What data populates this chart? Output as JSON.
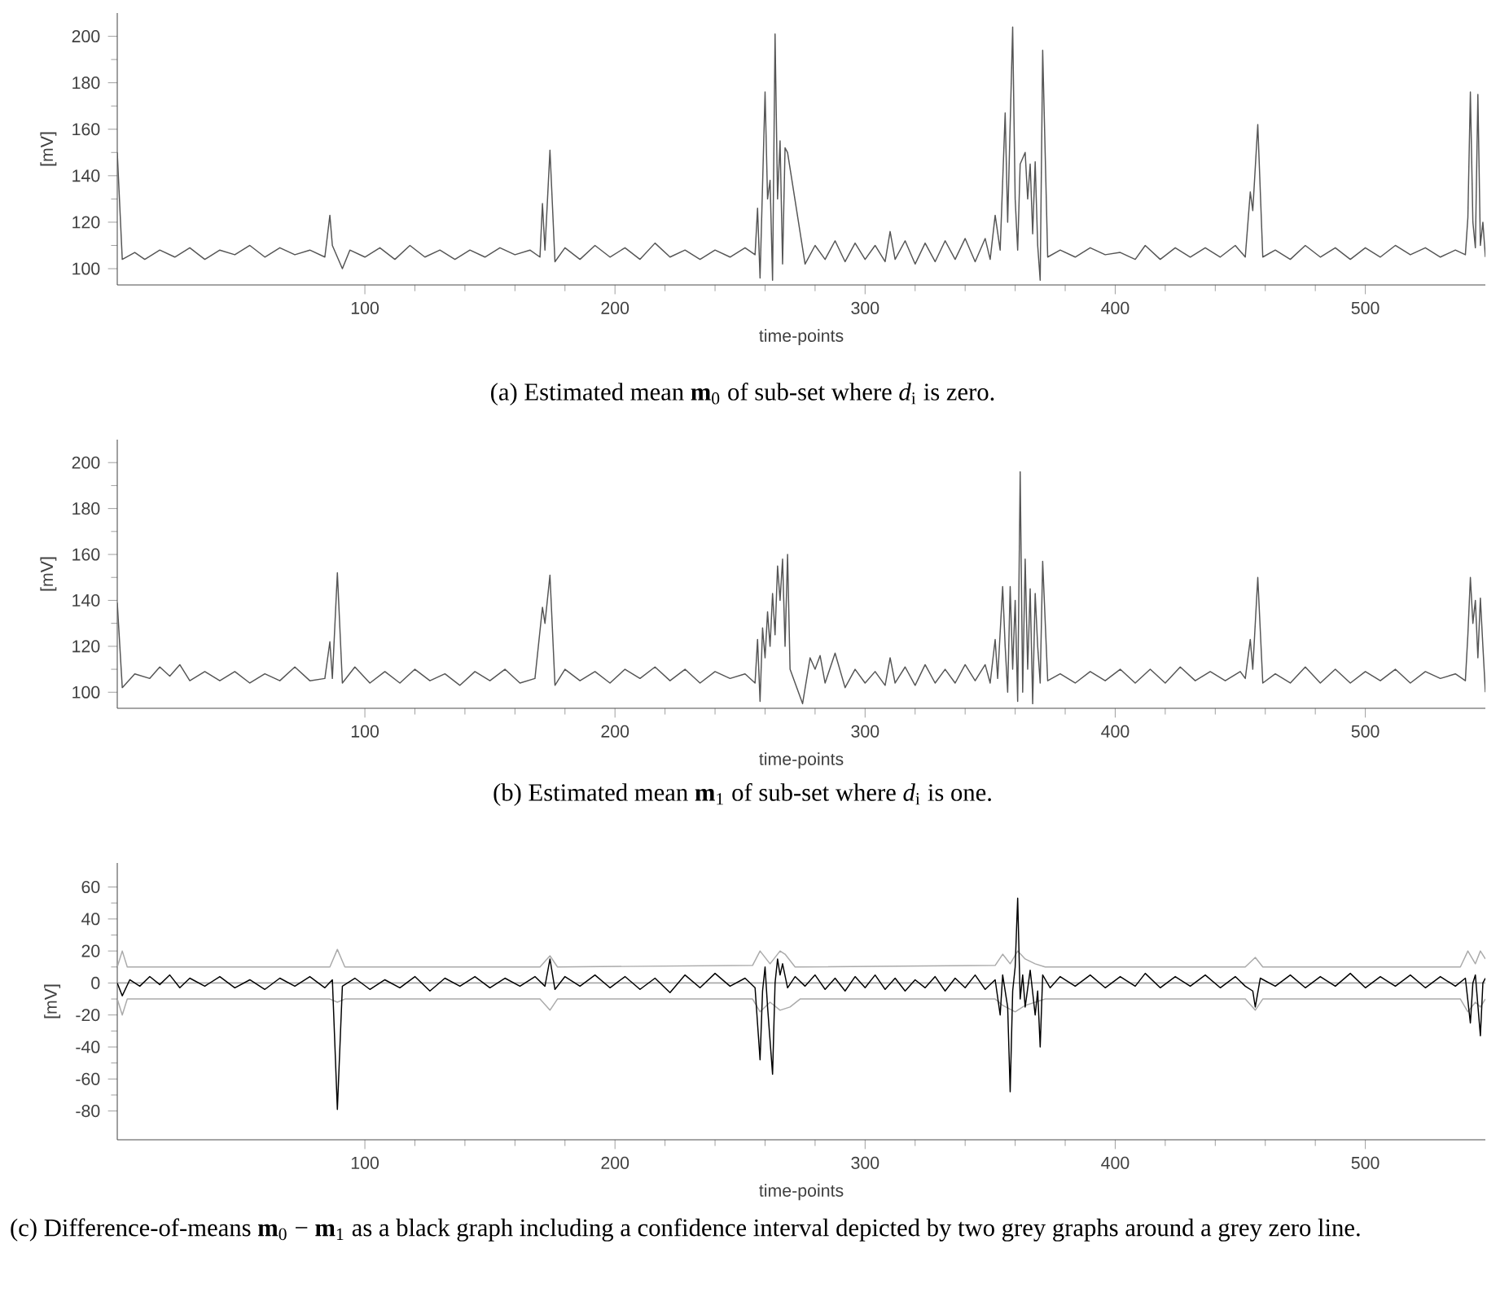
{
  "chart_data": [
    {
      "type": "line",
      "xlabel": "time-points",
      "ylabel": "[mV]",
      "xlim": [
        1,
        548
      ],
      "ylim": [
        93,
        210
      ],
      "xticks": [
        100,
        200,
        300,
        400,
        500
      ],
      "yticks": [
        100,
        120,
        140,
        160,
        180,
        200
      ],
      "annotations": [
        "(a) Estimated mean **m**$_{0}$ of sub-set where *d*$_{i}$ is zero."
      ],
      "series": [
        {
          "color": "#555555",
          "x": [
            1,
            3,
            8,
            12,
            18,
            24,
            30,
            36,
            42,
            48,
            54,
            60,
            66,
            72,
            78,
            84,
            86,
            87,
            89,
            91,
            94,
            100,
            106,
            112,
            118,
            124,
            130,
            136,
            142,
            148,
            154,
            160,
            166,
            170,
            171,
            172,
            174,
            176,
            180,
            186,
            192,
            198,
            204,
            210,
            216,
            222,
            228,
            234,
            240,
            246,
            252,
            256,
            257,
            258,
            260,
            261,
            262,
            263,
            264,
            265,
            266,
            267,
            268,
            269,
            270,
            273,
            276,
            280,
            284,
            288,
            292,
            296,
            300,
            304,
            308,
            310,
            312,
            316,
            320,
            324,
            328,
            332,
            336,
            340,
            344,
            348,
            350,
            352,
            354,
            356,
            357,
            359,
            360,
            361,
            362,
            364,
            365,
            366,
            367,
            368,
            369,
            370,
            371,
            373,
            378,
            384,
            390,
            396,
            402,
            408,
            412,
            418,
            424,
            430,
            436,
            442,
            448,
            452,
            454,
            455,
            457,
            459,
            464,
            470,
            476,
            482,
            488,
            494,
            500,
            506,
            512,
            518,
            524,
            530,
            536,
            540,
            541,
            542,
            543,
            544,
            545,
            546,
            547,
            548
          ],
          "values": [
            150,
            104,
            107,
            104,
            108,
            105,
            109,
            104,
            108,
            106,
            110,
            105,
            109,
            106,
            108,
            105,
            123,
            110,
            null,
            100,
            108,
            105,
            109,
            104,
            110,
            105,
            108,
            104,
            108,
            105,
            109,
            106,
            108,
            105,
            128,
            108,
            151,
            103,
            109,
            104,
            110,
            105,
            109,
            104,
            111,
            105,
            108,
            104,
            108,
            105,
            109,
            106,
            126,
            96,
            176,
            130,
            138,
            95,
            201,
            130,
            155,
            102,
            152,
            150,
            null,
            null,
            102,
            110,
            104,
            112,
            103,
            111,
            104,
            110,
            103,
            116,
            104,
            112,
            102,
            111,
            103,
            112,
            104,
            113,
            103,
            113,
            104,
            123,
            108,
            167,
            120,
            204,
            130,
            108,
            145,
            150,
            130,
            145,
            115,
            146,
            110,
            95,
            194,
            105,
            108,
            105,
            109,
            106,
            107,
            104,
            110,
            104,
            109,
            105,
            109,
            105,
            110,
            105,
            133,
            125,
            162,
            105,
            108,
            104,
            110,
            105,
            109,
            104,
            109,
            105,
            110,
            106,
            109,
            105,
            108,
            106,
            122,
            176,
            120,
            109,
            175,
            110,
            120,
            105
          ]
        }
      ]
    },
    {
      "type": "line",
      "xlabel": "time-points",
      "ylabel": "[mV]",
      "xlim": [
        1,
        548
      ],
      "ylim": [
        93,
        210
      ],
      "xticks": [
        100,
        200,
        300,
        400,
        500
      ],
      "yticks": [
        100,
        120,
        140,
        160,
        180,
        200
      ],
      "annotations": [
        "(b) Estimated mean **m**$_{1}$ of sub-set where *d*$_{i}$ is one."
      ],
      "series": [
        {
          "color": "#555555",
          "x": [
            1,
            3,
            8,
            14,
            18,
            22,
            26,
            30,
            36,
            42,
            48,
            54,
            60,
            66,
            72,
            78,
            84,
            86,
            87,
            89,
            91,
            96,
            102,
            108,
            114,
            120,
            126,
            132,
            138,
            144,
            150,
            156,
            162,
            168,
            171,
            172,
            174,
            176,
            180,
            186,
            192,
            198,
            204,
            210,
            216,
            222,
            228,
            234,
            240,
            246,
            252,
            256,
            257,
            258,
            259,
            260,
            261,
            262,
            263,
            264,
            265,
            266,
            267,
            268,
            269,
            270,
            272,
            275,
            278,
            280,
            282,
            284,
            288,
            292,
            296,
            300,
            304,
            308,
            310,
            312,
            316,
            320,
            324,
            328,
            332,
            336,
            340,
            344,
            348,
            350,
            352,
            353,
            355,
            356,
            357,
            358,
            359,
            360,
            361,
            362,
            363,
            364,
            365,
            366,
            367,
            368,
            369,
            370,
            371,
            373,
            378,
            384,
            390,
            396,
            402,
            408,
            414,
            420,
            426,
            432,
            438,
            444,
            450,
            452,
            454,
            455,
            457,
            459,
            464,
            470,
            476,
            482,
            488,
            494,
            500,
            506,
            512,
            518,
            524,
            530,
            536,
            540,
            541,
            542,
            543,
            544,
            545,
            546,
            547,
            548
          ],
          "values": [
            139,
            102,
            108,
            106,
            111,
            107,
            112,
            105,
            109,
            105,
            109,
            104,
            108,
            105,
            111,
            105,
            106,
            122,
            106,
            152,
            104,
            111,
            104,
            109,
            104,
            110,
            105,
            108,
            103,
            109,
            105,
            110,
            104,
            106,
            137,
            130,
            151,
            103,
            110,
            105,
            109,
            104,
            110,
            106,
            111,
            105,
            110,
            104,
            109,
            106,
            108,
            104,
            123,
            96,
            128,
            115,
            135,
            120,
            143,
            125,
            155,
            140,
            158,
            120,
            160,
            110,
            null,
            95,
            115,
            110,
            116,
            104,
            117,
            102,
            110,
            104,
            109,
            103,
            115,
            104,
            111,
            103,
            112,
            104,
            110,
            104,
            112,
            105,
            112,
            104,
            123,
            106,
            146,
            120,
            100,
            146,
            110,
            140,
            96,
            196,
            100,
            158,
            110,
            145,
            95,
            143,
            120,
            104,
            157,
            105,
            108,
            104,
            109,
            105,
            110,
            104,
            110,
            104,
            111,
            105,
            109,
            105,
            109,
            106,
            123,
            110,
            150,
            104,
            108,
            104,
            111,
            104,
            110,
            104,
            109,
            105,
            110,
            104,
            109,
            106,
            108,
            105,
            125,
            150,
            130,
            140,
            115,
            141,
            120,
            100
          ]
        }
      ]
    },
    {
      "type": "line",
      "xlabel": "time-points",
      "ylabel": "[mV]",
      "xlim": [
        1,
        548
      ],
      "ylim": [
        -98,
        75
      ],
      "xticks": [
        100,
        200,
        300,
        400,
        500
      ],
      "yticks": [
        -80,
        -60,
        -40,
        -20,
        0,
        20,
        40,
        60
      ],
      "annotations": [
        "(c) Difference-of-means **m**$_{0}$ − **m**$_{1}$ as a black graph including a confidence interval depicted by two grey graphs around a grey zero line."
      ],
      "ref_lines": [
        {
          "axis": "y",
          "value": 0,
          "color": "#aaaaaa"
        }
      ],
      "series": [
        {
          "color": "#aaaaaa",
          "x": [
            1,
            3,
            5,
            86,
            89,
            92,
            170,
            174,
            177,
            255,
            258,
            262,
            266,
            268,
            272,
            352,
            355,
            358,
            361,
            364,
            368,
            372,
            452,
            456,
            459,
            538,
            541,
            544,
            546,
            548
          ],
          "values": [
            10,
            20,
            10,
            10,
            21,
            10,
            10,
            17,
            10,
            11,
            20,
            12,
            20,
            18,
            10,
            11,
            18,
            12,
            20,
            15,
            12,
            10,
            10,
            16,
            10,
            10,
            20,
            12,
            20,
            15
          ]
        },
        {
          "color": "#aaaaaa",
          "x": [
            1,
            3,
            5,
            86,
            89,
            92,
            170,
            174,
            177,
            255,
            258,
            262,
            266,
            270,
            274,
            352,
            355,
            360,
            364,
            368,
            372,
            452,
            456,
            459,
            538,
            541,
            544,
            546,
            548
          ],
          "values": [
            -10,
            -20,
            -10,
            -10,
            -12,
            -10,
            -10,
            -17,
            -10,
            -10,
            -18,
            -12,
            -17,
            -15,
            -10,
            -10,
            -14,
            -18,
            -14,
            -12,
            -10,
            -10,
            -17,
            -10,
            -10,
            -18,
            -12,
            -15,
            -10
          ]
        },
        {
          "color": "#000000",
          "x": [
            1,
            3,
            6,
            10,
            14,
            18,
            22,
            26,
            30,
            36,
            42,
            48,
            54,
            60,
            66,
            72,
            78,
            84,
            87,
            89,
            91,
            96,
            102,
            108,
            114,
            120,
            126,
            132,
            138,
            144,
            150,
            156,
            162,
            168,
            172,
            174,
            176,
            180,
            186,
            192,
            198,
            204,
            210,
            216,
            222,
            228,
            234,
            240,
            246,
            252,
            256,
            258,
            259,
            260,
            261,
            263,
            264,
            265,
            266,
            267,
            269,
            272,
            276,
            280,
            284,
            288,
            292,
            296,
            300,
            304,
            308,
            312,
            316,
            320,
            324,
            328,
            332,
            336,
            340,
            344,
            348,
            352,
            354,
            355,
            357,
            358,
            359,
            360,
            361,
            362,
            363,
            364,
            366,
            368,
            369,
            370,
            371,
            374,
            378,
            384,
            390,
            396,
            402,
            408,
            412,
            418,
            424,
            430,
            436,
            442,
            448,
            452,
            455,
            456,
            458,
            464,
            470,
            476,
            482,
            488,
            494,
            500,
            506,
            512,
            518,
            524,
            530,
            536,
            540,
            542,
            543,
            544,
            546,
            547,
            548
          ],
          "values": [
            0,
            -8,
            2,
            -2,
            4,
            -1,
            5,
            -3,
            3,
            -2,
            4,
            -3,
            2,
            -4,
            3,
            -2,
            4,
            -3,
            2,
            -79,
            -2,
            3,
            -4,
            2,
            -3,
            4,
            -5,
            3,
            -2,
            4,
            -3,
            3,
            -2,
            4,
            -2,
            15,
            -4,
            4,
            -2,
            5,
            -3,
            4,
            -4,
            3,
            -6,
            5,
            -3,
            6,
            -2,
            3,
            -3,
            -48,
            -5,
            10,
            -15,
            -57,
            0,
            15,
            5,
            12,
            -3,
            4,
            -2,
            5,
            -4,
            3,
            -5,
            4,
            -3,
            5,
            -4,
            3,
            -5,
            2,
            -3,
            4,
            -5,
            3,
            -3,
            5,
            -4,
            2,
            -20,
            5,
            -15,
            -68,
            -5,
            10,
            53,
            -10,
            5,
            -15,
            8,
            -20,
            -5,
            -40,
            5,
            -3,
            4,
            -2,
            5,
            -3,
            4,
            -2,
            6,
            -3,
            4,
            -2,
            5,
            -3,
            4,
            -2,
            -5,
            -15,
            3,
            -2,
            5,
            -3,
            4,
            -2,
            6,
            -3,
            4,
            -2,
            5,
            -3,
            4,
            -2,
            3,
            -25,
            0,
            5,
            -33,
            0,
            3
          ]
        }
      ]
    }
  ]
}
